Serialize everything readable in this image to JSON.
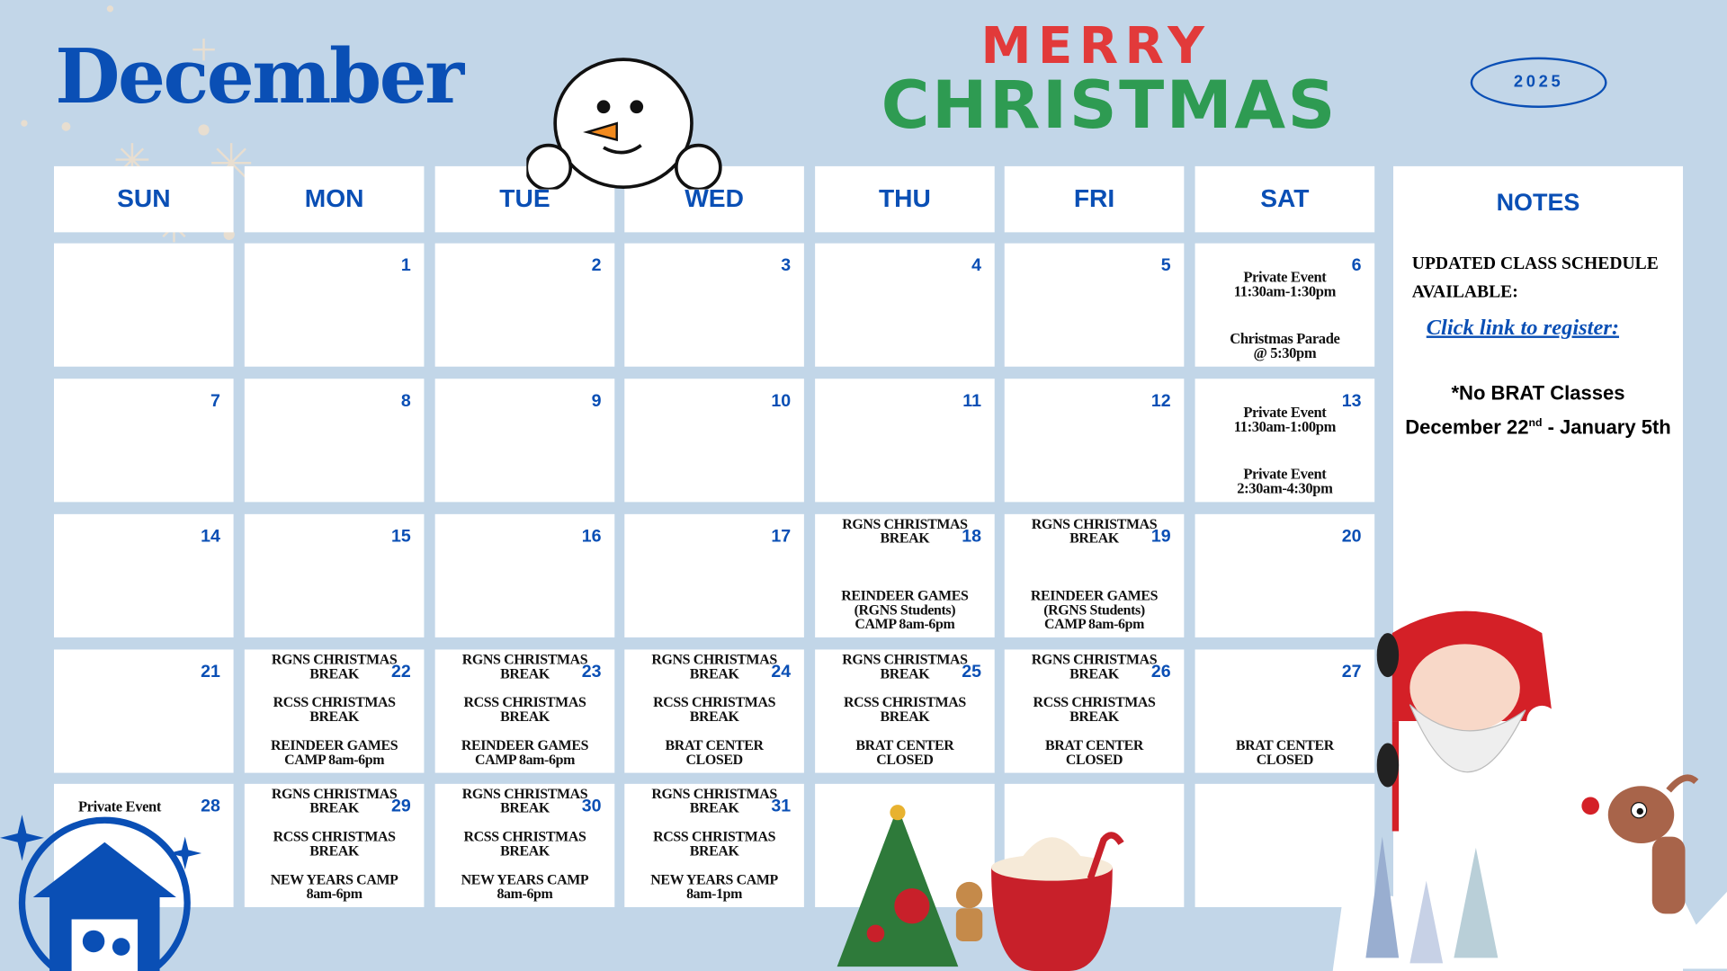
{
  "header": {
    "month": "December",
    "year": "2025",
    "greeting_line1": "MERRY",
    "greeting_line2": "CHRISTMAS"
  },
  "weekdays": [
    "SUN",
    "MON",
    "TUE",
    "WED",
    "THU",
    "FRI",
    "SAT"
  ],
  "weeks": [
    [
      {
        "day": "",
        "events": []
      },
      {
        "day": "1",
        "events": []
      },
      {
        "day": "2",
        "events": []
      },
      {
        "day": "3",
        "events": []
      },
      {
        "day": "4",
        "events": []
      },
      {
        "day": "5",
        "events": []
      },
      {
        "day": "6",
        "events": [
          "Private Event\n11:30am-1:30pm",
          "Christmas Parade\n@ 5:30pm"
        ]
      }
    ],
    [
      {
        "day": "7",
        "events": []
      },
      {
        "day": "8",
        "events": []
      },
      {
        "day": "9",
        "events": []
      },
      {
        "day": "10",
        "events": []
      },
      {
        "day": "11",
        "events": []
      },
      {
        "day": "12",
        "events": []
      },
      {
        "day": "13",
        "events": [
          "Private Event\n11:30am-1:00pm",
          "Private Event\n2:30am-4:30pm"
        ]
      }
    ],
    [
      {
        "day": "14",
        "events": []
      },
      {
        "day": "15",
        "events": []
      },
      {
        "day": "16",
        "events": []
      },
      {
        "day": "17",
        "events": []
      },
      {
        "day": "18",
        "events": [
          "RGNS CHRISTMAS\nBREAK",
          "REINDEER GAMES\n(RGNS Students)\nCAMP 8am-6pm"
        ]
      },
      {
        "day": "19",
        "events": [
          "RGNS CHRISTMAS\nBREAK",
          "REINDEER GAMES\n(RGNS Students)\nCAMP 8am-6pm"
        ]
      },
      {
        "day": "20",
        "events": []
      }
    ],
    [
      {
        "day": "21",
        "events": []
      },
      {
        "day": "22",
        "events": [
          "RGNS CHRISTMAS\nBREAK",
          "RCSS CHRISTMAS\nBREAK",
          "REINDEER GAMES\nCAMP 8am-6pm"
        ]
      },
      {
        "day": "23",
        "events": [
          "RGNS CHRISTMAS\nBREAK",
          "RCSS CHRISTMAS\nBREAK",
          "REINDEER GAMES\nCAMP 8am-6pm"
        ]
      },
      {
        "day": "24",
        "events": [
          "RGNS CHRISTMAS\nBREAK",
          "RCSS CHRISTMAS\nBREAK",
          "BRAT CENTER\nCLOSED"
        ]
      },
      {
        "day": "25",
        "events": [
          "RGNS CHRISTMAS\nBREAK",
          "RCSS CHRISTMAS\nBREAK",
          "BRAT CENTER\nCLOSED"
        ]
      },
      {
        "day": "26",
        "events": [
          "RGNS CHRISTMAS\nBREAK",
          "RCSS CHRISTMAS\nBREAK",
          "BRAT CENTER\nCLOSED"
        ]
      },
      {
        "day": "27",
        "events": [
          "",
          "BRAT CENTER\nCLOSED"
        ]
      }
    ],
    [
      {
        "day": "28",
        "events": [
          "Private Event"
        ]
      },
      {
        "day": "29",
        "events": [
          "RGNS CHRISTMAS\nBREAK",
          "RCSS CHRISTMAS\nBREAK",
          "NEW YEARS CAMP\n8am-6pm"
        ]
      },
      {
        "day": "30",
        "events": [
          "RGNS CHRISTMAS\nBREAK",
          "RCSS CHRISTMAS\nBREAK",
          "NEW YEARS CAMP\n8am-6pm"
        ]
      },
      {
        "day": "31",
        "events": [
          "RGNS CHRISTMAS\nBREAK",
          "RCSS CHRISTMAS\nBREAK",
          "NEW YEARS CAMP\n8am-1pm"
        ]
      },
      {
        "day": "",
        "events": []
      },
      {
        "day": "",
        "events": []
      },
      {
        "day": "",
        "events": []
      }
    ]
  ],
  "notes": {
    "title": "NOTES",
    "line1": "UPDATED CLASS SCHEDULE AVAILABLE:",
    "link": "Click link to register:",
    "no_classes": "*No BRAT Classes",
    "range_pre": "December 22",
    "range_sup": "nd",
    "range_post": " - January 5th"
  },
  "colors": {
    "background": "#c2d6e8",
    "accent": "#0a4fb5",
    "cell": "#ffffff"
  },
  "icons": [
    "snowman",
    "snowflakes",
    "santa",
    "reindeer",
    "nativity",
    "christmas-tree",
    "hot-cocoa"
  ]
}
